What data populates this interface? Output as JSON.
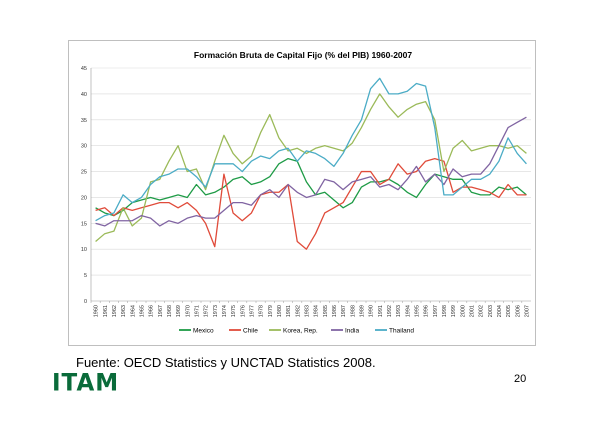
{
  "chart_data": {
    "type": "line",
    "title": "Formación Bruta de Capital Fijo (% del PIB) 1960-2007",
    "xlabel": "",
    "ylabel": "",
    "ylim": [
      0,
      45
    ],
    "yticks": [
      0,
      5,
      10,
      15,
      20,
      25,
      30,
      35,
      40,
      45
    ],
    "grid": true,
    "legend_position": "bottom",
    "categories": [
      "1960",
      "1961",
      "1962",
      "1963",
      "1964",
      "1965",
      "1966",
      "1967",
      "1968",
      "1969",
      "1970",
      "1971",
      "1972",
      "1973",
      "1974",
      "1975",
      "1976",
      "1977",
      "1978",
      "1979",
      "1980",
      "1981",
      "1982",
      "1983",
      "1984",
      "1985",
      "1986",
      "1987",
      "1988",
      "1989",
      "1990",
      "1991",
      "1992",
      "1993",
      "1994",
      "1995",
      "1996",
      "1997",
      "1998",
      "1999",
      "2000",
      "2001",
      "2002",
      "2003",
      "2004",
      "2005",
      "2006",
      "2007"
    ],
    "series": [
      {
        "name": "Mexico",
        "color": "#1e9b46",
        "values": [
          18.0,
          17.0,
          16.5,
          17.5,
          19.0,
          19.5,
          20.0,
          19.5,
          20.0,
          20.5,
          20.0,
          22.5,
          20.5,
          21.0,
          22.0,
          23.5,
          24.0,
          22.5,
          23.0,
          24.0,
          26.5,
          27.5,
          27.0,
          23.0,
          20.5,
          21.0,
          19.5,
          18.0,
          19.0,
          22.0,
          23.0,
          23.0,
          23.5,
          22.5,
          21.0,
          20.0,
          22.5,
          24.5,
          24.0,
          23.5,
          23.5,
          21.0,
          20.5,
          20.5,
          22.0,
          21.5,
          22.0,
          20.5
        ]
      },
      {
        "name": "Chile",
        "color": "#e04b3a",
        "values": [
          17.5,
          18.0,
          16.5,
          18.0,
          17.5,
          18.0,
          18.5,
          19.0,
          19.0,
          18.0,
          19.0,
          17.5,
          15.0,
          10.5,
          24.5,
          17.0,
          15.5,
          17.0,
          20.5,
          21.0,
          21.0,
          22.5,
          11.5,
          10.0,
          13.0,
          17.0,
          18.0,
          19.0,
          22.0,
          25.0,
          25.0,
          22.5,
          23.5,
          26.5,
          24.5,
          25.0,
          27.0,
          27.5,
          27.0,
          21.0,
          22.0,
          22.0,
          21.5,
          21.0,
          20.0,
          22.5,
          20.5,
          20.5
        ]
      },
      {
        "name": "Korea, Rep.",
        "color": "#9bba59",
        "values": [
          11.5,
          13.0,
          13.5,
          18.0,
          14.5,
          16.0,
          23.0,
          23.5,
          27.0,
          30.0,
          25.0,
          25.5,
          21.5,
          27.0,
          32.0,
          28.5,
          26.5,
          28.0,
          32.5,
          36.0,
          31.5,
          29.0,
          29.5,
          28.5,
          29.5,
          30.0,
          29.5,
          29.0,
          30.5,
          33.5,
          37.0,
          40.0,
          37.5,
          35.5,
          37.0,
          38.0,
          38.5,
          35.0,
          25.0,
          29.5,
          31.0,
          29.0,
          29.5,
          30.0,
          30.0,
          29.5,
          30.0,
          28.5
        ]
      },
      {
        "name": "India",
        "color": "#8064a2",
        "values": [
          15.0,
          14.5,
          15.5,
          15.5,
          15.5,
          16.5,
          16.0,
          14.5,
          15.5,
          15.0,
          16.0,
          16.5,
          16.0,
          16.0,
          17.5,
          19.0,
          19.0,
          18.5,
          20.5,
          21.5,
          20.0,
          22.5,
          21.0,
          20.0,
          20.5,
          23.5,
          23.0,
          21.5,
          23.0,
          23.5,
          24.0,
          22.0,
          22.5,
          21.5,
          23.5,
          26.0,
          23.0,
          24.5,
          22.5,
          25.5,
          24.0,
          24.5,
          24.5,
          26.5,
          30.0,
          33.5,
          34.5,
          35.5
        ]
      },
      {
        "name": "Thailand",
        "color": "#4bacc6",
        "values": [
          15.5,
          16.5,
          17.0,
          20.5,
          19.0,
          20.0,
          22.5,
          24.0,
          24.5,
          25.5,
          25.5,
          24.0,
          22.0,
          26.5,
          26.5,
          26.5,
          25.0,
          27.0,
          28.0,
          27.5,
          29.0,
          29.5,
          27.0,
          29.0,
          28.5,
          27.5,
          26.0,
          28.5,
          32.0,
          35.0,
          41.0,
          43.0,
          40.0,
          40.0,
          40.5,
          42.0,
          41.5,
          33.5,
          20.5,
          20.5,
          22.0,
          23.5,
          23.5,
          24.5,
          27.0,
          31.5,
          28.5,
          26.5
        ]
      }
    ]
  },
  "source_text": "Fuente: OECD Statistics y UNCTAD Statistics 2008.",
  "logo_text": "ITAM",
  "page_number": "20"
}
